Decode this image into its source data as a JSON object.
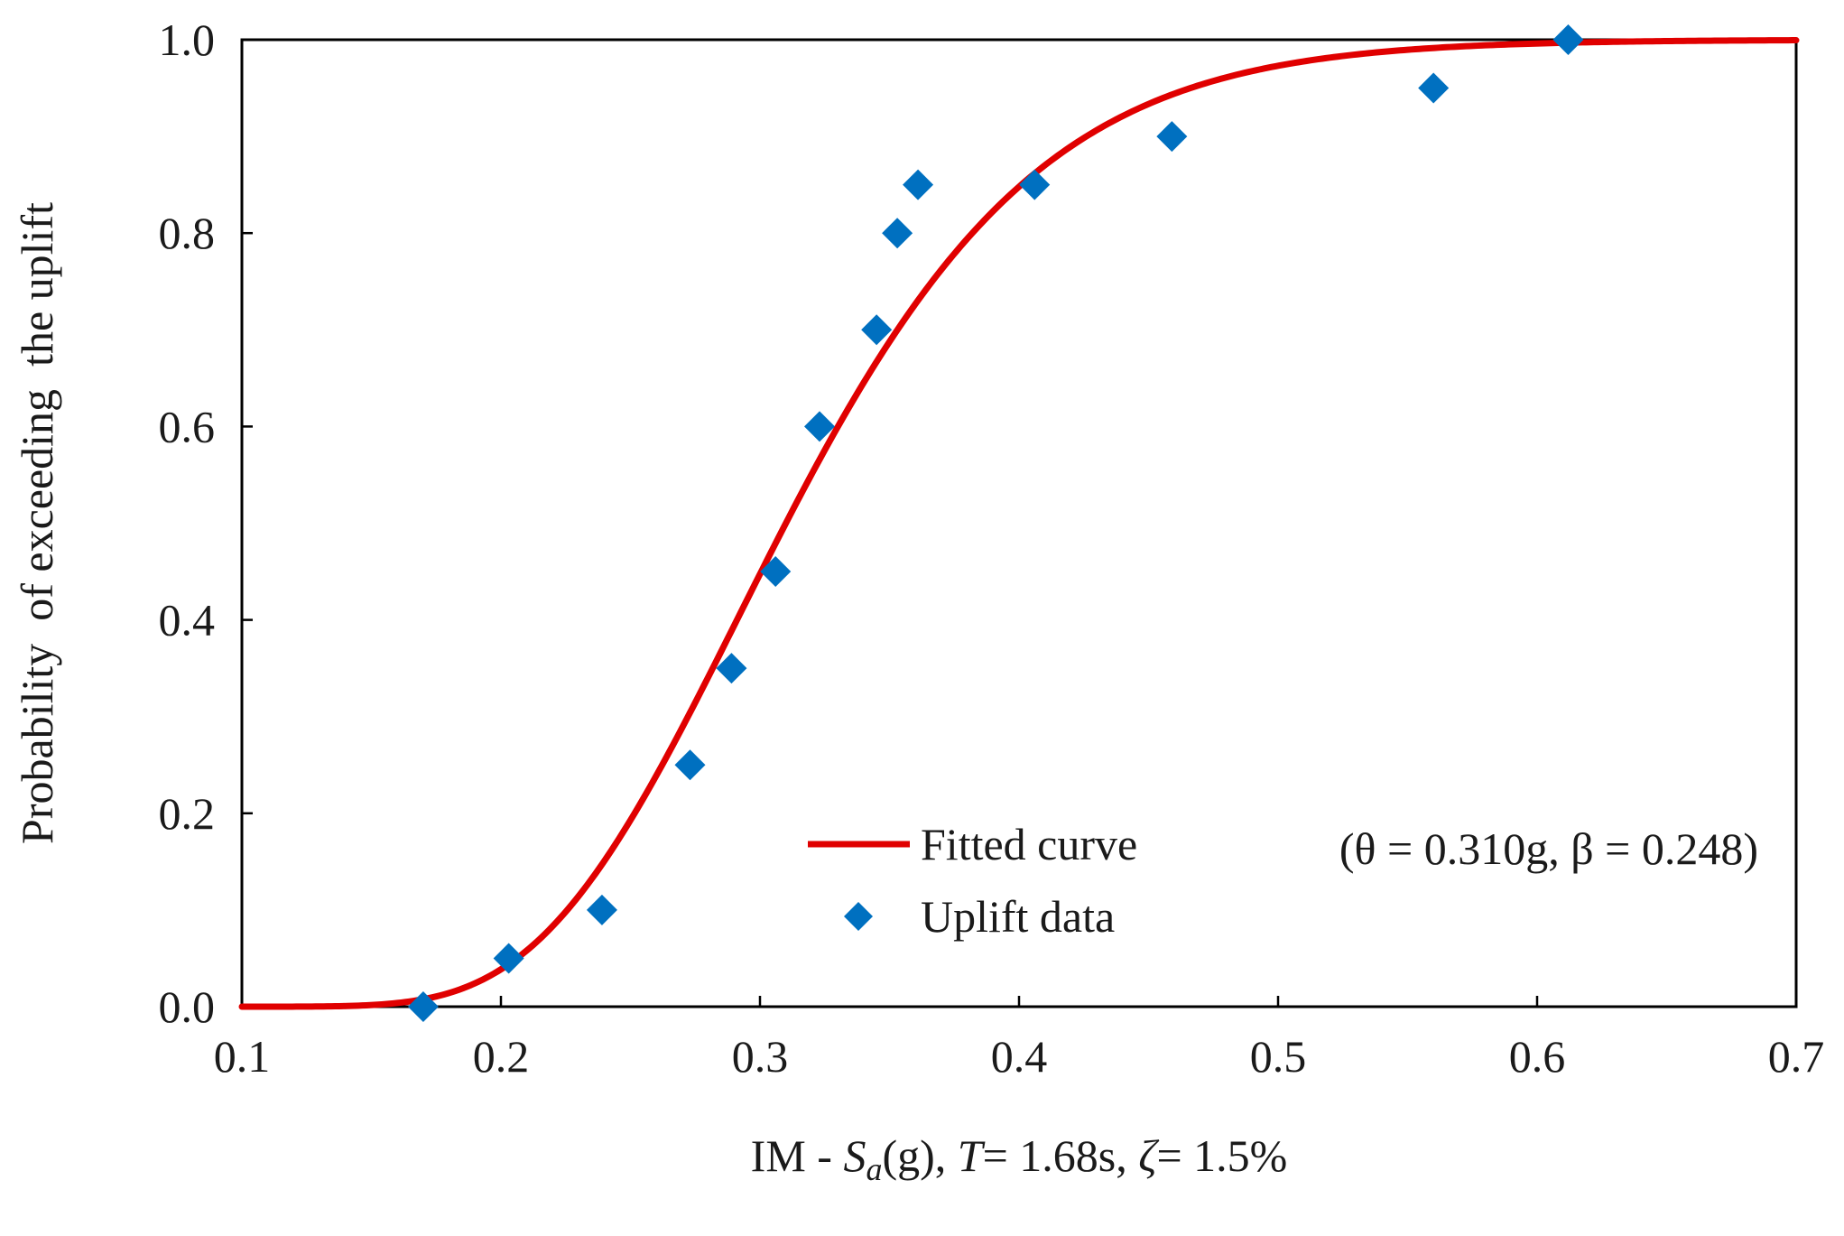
{
  "chart_data": {
    "type": "scatter",
    "title": "",
    "xlabel": {
      "parts": [
        {
          "text": "IM - ",
          "style": "normal"
        },
        {
          "text": "S",
          "style": "italic"
        },
        {
          "text": "a",
          "style": "italic-sub"
        },
        {
          "text": "(g), ",
          "style": "normal"
        },
        {
          "text": "T",
          "style": "italic"
        },
        {
          "text": "= 1.68s, ",
          "style": "normal"
        },
        {
          "text": "ζ",
          "style": "italic"
        },
        {
          "text": "= 1.5%",
          "style": "normal"
        }
      ]
    },
    "ylabel": "Probability  of exceeding  the uplift",
    "xlim": [
      0.1,
      0.7
    ],
    "ylim": [
      0.0,
      1.0
    ],
    "xticks": [
      0.1,
      0.2,
      0.3,
      0.4,
      0.5,
      0.6,
      0.7
    ],
    "xtick_labels": [
      "0.1",
      "0.2",
      "0.3",
      "0.4",
      "0.5",
      "0.6",
      "0.7"
    ],
    "yticks": [
      0.0,
      0.2,
      0.4,
      0.6,
      0.8,
      1.0
    ],
    "ytick_labels": [
      "0.0",
      "0.2",
      "0.4",
      "0.6",
      "0.8",
      "1.0"
    ],
    "grid": false,
    "legend_position": "bottom-right",
    "series": [
      {
        "name": "Fitted curve",
        "legend_label": "Fitted curve",
        "legend_params": "(θ = 0.310g,  β = 0.248)",
        "kind": "lognormal-cdf-line",
        "theta": 0.31,
        "beta": 0.248,
        "color": "#e00000"
      },
      {
        "name": "Uplift data",
        "legend_label": "Uplift data",
        "kind": "markers",
        "marker": "diamond",
        "color": "#0070c0",
        "points": [
          {
            "x": 0.17,
            "y": 0.0
          },
          {
            "x": 0.203,
            "y": 0.05
          },
          {
            "x": 0.239,
            "y": 0.1
          },
          {
            "x": 0.273,
            "y": 0.25
          },
          {
            "x": 0.289,
            "y": 0.35
          },
          {
            "x": 0.306,
            "y": 0.45
          },
          {
            "x": 0.323,
            "y": 0.6
          },
          {
            "x": 0.345,
            "y": 0.7
          },
          {
            "x": 0.353,
            "y": 0.8
          },
          {
            "x": 0.361,
            "y": 0.85
          },
          {
            "x": 0.406,
            "y": 0.85
          },
          {
            "x": 0.459,
            "y": 0.9
          },
          {
            "x": 0.56,
            "y": 0.95
          },
          {
            "x": 0.612,
            "y": 1.0
          }
        ]
      }
    ]
  }
}
